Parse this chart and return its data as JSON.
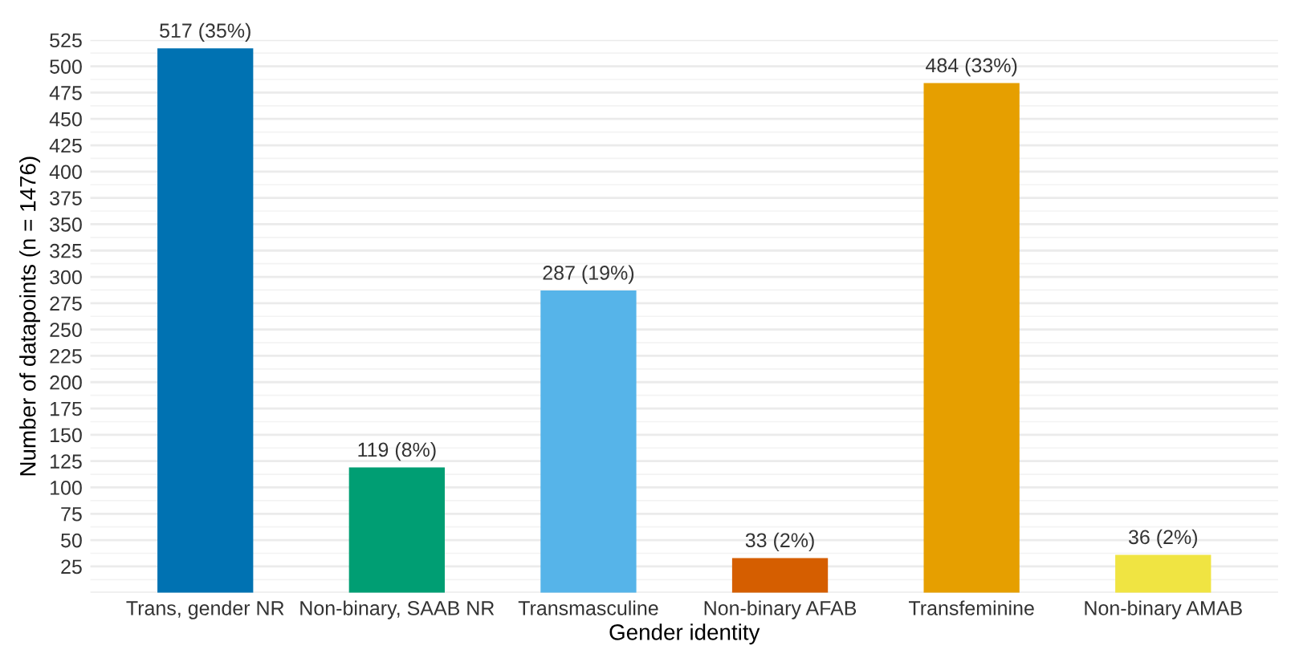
{
  "chart_data": {
    "type": "bar",
    "xlabel": "Gender identity",
    "ylabel": "Number of datapoints (n = 1476)",
    "categories": [
      "Trans, gender NR",
      "Non-binary, SAAB NR",
      "Transmasculine",
      "Non-binary AFAB",
      "Transfeminine",
      "Non-binary AMAB"
    ],
    "values": [
      517,
      119,
      287,
      33,
      484,
      36
    ],
    "colors": [
      "#0072b2",
      "#009e73",
      "#56b4e9",
      "#d55e00",
      "#e69f00",
      "#f0e442"
    ],
    "value_labels": [
      "517 (35%)",
      "119 (8%)",
      "287 (19%)",
      "33 (2%)",
      "484 (33%)",
      "36 (2%)"
    ],
    "ylim": [
      0,
      525
    ],
    "yticks": [
      {
        "value": 0,
        "label": null
      },
      25,
      50,
      75,
      100,
      125,
      150,
      175,
      200,
      225,
      250,
      275,
      300,
      325,
      350,
      375,
      400,
      425,
      450,
      475,
      500,
      525
    ],
    "grid": "y",
    "legend": false
  }
}
